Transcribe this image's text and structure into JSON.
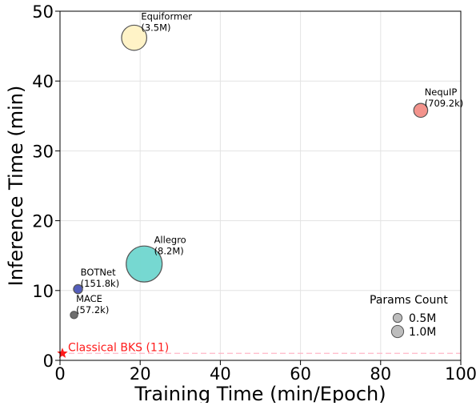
{
  "chart_data": {
    "type": "scatter",
    "xlabel": "Training Time (min/Epoch)",
    "ylabel": "Inference Time (min)",
    "xlim": [
      0,
      100
    ],
    "ylim": [
      0,
      50
    ],
    "xticks": [
      "0",
      "20",
      "40",
      "60",
      "80",
      "100"
    ],
    "yticks": [
      "0",
      "10",
      "20",
      "30",
      "40",
      "50"
    ],
    "grid": true,
    "points": [
      {
        "name": "Equiformer",
        "params": "(3.5M)",
        "x": 18.5,
        "y": 46.2,
        "size_m": 3.5,
        "color": "#fff2c4"
      },
      {
        "name": "NequIP",
        "params": "(709.2k)",
        "x": 90,
        "y": 35.8,
        "size_m": 0.709,
        "color": "#f28d86"
      },
      {
        "name": "Allegro",
        "params": "(8.2M)",
        "x": 21,
        "y": 13.8,
        "size_m": 8.2,
        "color": "#6fd6cf"
      },
      {
        "name": "BOTNet",
        "params": "(151.8k)",
        "x": 4.5,
        "y": 10.2,
        "size_m": 0.152,
        "color": "#4b55b8"
      },
      {
        "name": "MACE",
        "params": "(57.2k)",
        "x": 3.5,
        "y": 6.5,
        "size_m": 0.057,
        "color": "#666666"
      }
    ],
    "baseline": {
      "label": "Classical BKS (11)",
      "y": 1,
      "marker_x": 0.6,
      "color": "#ff1a1a",
      "line_color": "#ffb6c8"
    },
    "legend": {
      "title": "Params Count",
      "position": "lower-right",
      "entries": [
        {
          "label": "0.5M",
          "size_m": 0.5
        },
        {
          "label": "1.0M",
          "size_m": 1.0
        }
      ]
    }
  }
}
